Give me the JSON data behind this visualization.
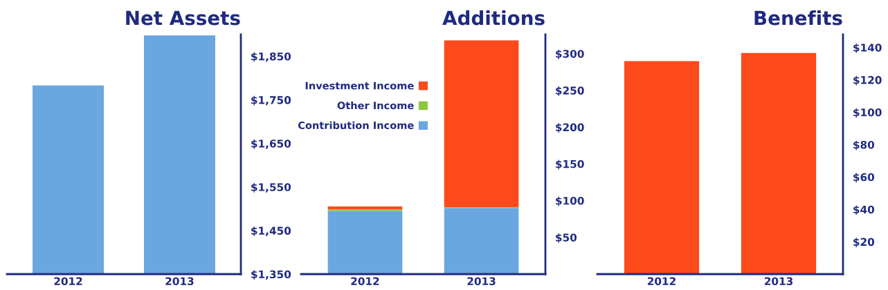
{
  "chart_data": [
    {
      "type": "bar",
      "title": "Net Assets",
      "categories": [
        "2012",
        "2013"
      ],
      "series": [
        {
          "color": "#6aa6e0",
          "values": [
            1783,
            1898
          ]
        }
      ],
      "ylim": [
        1350,
        1900
      ],
      "yticks": [
        {
          "value": 1350,
          "label": "$1,350"
        },
        {
          "value": 1450,
          "label": "$1,450"
        },
        {
          "value": 1550,
          "label": "$1,550"
        },
        {
          "value": 1650,
          "label": "$1,650"
        },
        {
          "value": 1750,
          "label": "$1,750"
        },
        {
          "value": 1850,
          "label": "$1,850"
        }
      ],
      "grid": false,
      "legend": false
    },
    {
      "type": "bar",
      "title": "Additions",
      "categories": [
        "2012",
        "2013"
      ],
      "stacked": true,
      "series": [
        {
          "name": "Contribution Income",
          "color": "#6aa6e0",
          "values": [
            86,
            90
          ]
        },
        {
          "name": "Other Income",
          "color": "#8cc63f",
          "values": [
            2,
            1
          ]
        },
        {
          "name": "Investment Income",
          "color": "#fc4a1a",
          "values": [
            4,
            227
          ]
        }
      ],
      "ylim": [
        0,
        326
      ],
      "yticks": [
        {
          "value": 50,
          "label": "$50"
        },
        {
          "value": 100,
          "label": "$100"
        },
        {
          "value": 150,
          "label": "$150"
        },
        {
          "value": 200,
          "label": "$200"
        },
        {
          "value": 250,
          "label": "$250"
        },
        {
          "value": 300,
          "label": "$300"
        }
      ],
      "grid": false,
      "legend": "top left"
    },
    {
      "type": "bar",
      "title": "Benefits",
      "categories": [
        "2012",
        "2013"
      ],
      "series": [
        {
          "color": "#fc4a1a",
          "values": [
            131.6,
            136.6
          ]
        }
      ],
      "ylim": [
        0,
        148
      ],
      "yticks": [
        {
          "value": 20,
          "label": "$20"
        },
        {
          "value": 40,
          "label": "$40"
        },
        {
          "value": 60,
          "label": "$60"
        },
        {
          "value": 80,
          "label": "$80"
        },
        {
          "value": 100,
          "label": "$100"
        },
        {
          "value": 120,
          "label": "$120"
        },
        {
          "value": 140,
          "label": "$140"
        }
      ],
      "grid": false,
      "legend": false
    }
  ]
}
